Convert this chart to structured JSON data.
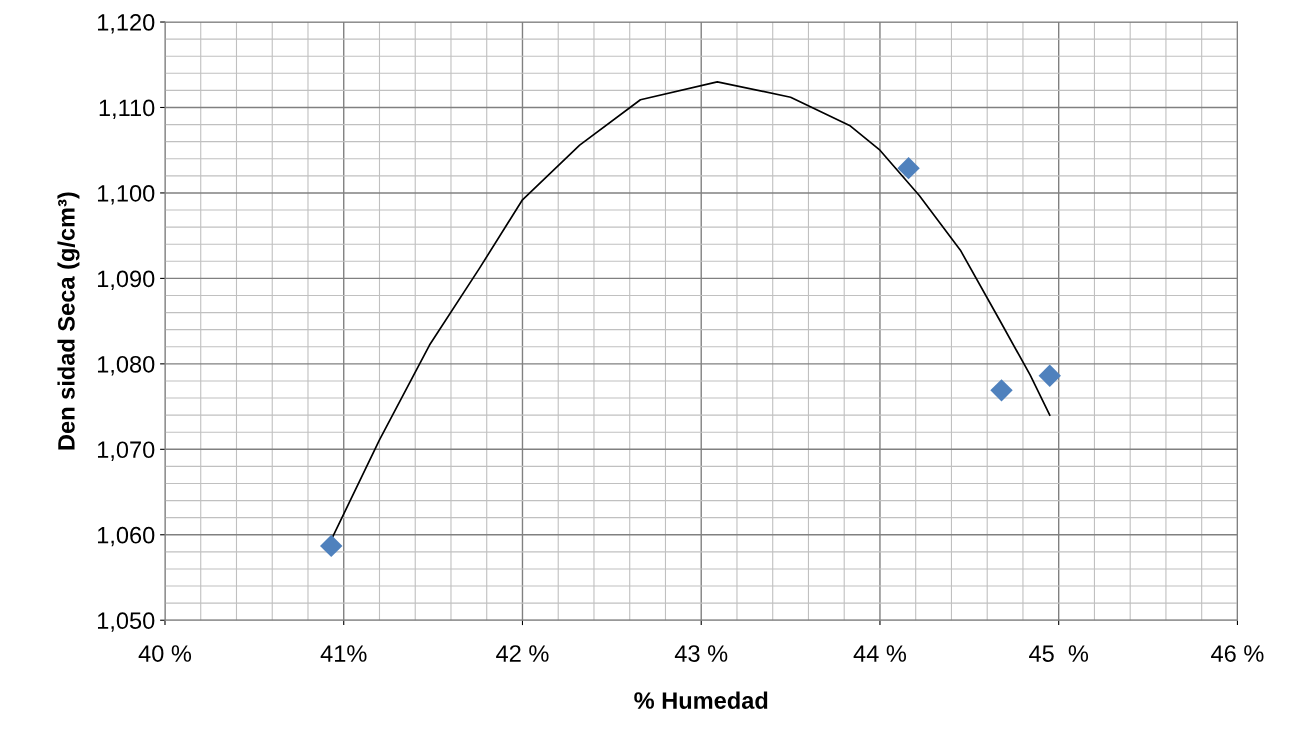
{
  "chart_data": {
    "type": "scatter",
    "xlabel": "% Humedad",
    "ylabel": "Den sidad Seca (g/cm³)",
    "xlim": [
      40,
      46
    ],
    "ylim": [
      1050,
      1120
    ],
    "xticks": [
      {
        "value": 40,
        "label": "40 %"
      },
      {
        "value": 41,
        "label": "41%"
      },
      {
        "value": 42,
        "label": "42 %"
      },
      {
        "value": 43,
        "label": "43 %"
      },
      {
        "value": 44,
        "label": "44 %"
      },
      {
        "value": 45,
        "label": "45  %"
      },
      {
        "value": 46,
        "label": "46 %"
      }
    ],
    "yticks": [
      {
        "value": 1050,
        "label": "1,050"
      },
      {
        "value": 1060,
        "label": "1,060"
      },
      {
        "value": 1070,
        "label": "1,070"
      },
      {
        "value": 1080,
        "label": "1,080"
      },
      {
        "value": 1090,
        "label": "1,090"
      },
      {
        "value": 1100,
        "label": "1,100"
      },
      {
        "value": 1110,
        "label": "1,110"
      },
      {
        "value": 1120,
        "label": "1,120"
      }
    ],
    "grid": true,
    "marker": "diamond",
    "series": [
      {
        "color": "#4f81bd",
        "x": [
          40.93,
          44.16,
          44.68,
          44.95
        ],
        "values": [
          1058.7,
          1102.9,
          1076.9,
          1078.6
        ]
      },
      {
        "type": "line",
        "color": "#000000",
        "marker": "none",
        "x": [
          40.93,
          41.2,
          41.48,
          41.76,
          42.0,
          42.32,
          42.66,
          43.09,
          43.5,
          43.83,
          44.0,
          44.22,
          44.45,
          44.67,
          44.84,
          44.95
        ],
        "values": [
          1059.4,
          1071.1,
          1082.2,
          1091.2,
          1099.2,
          1105.6,
          1110.9,
          1113.0,
          1111.2,
          1107.9,
          1105.0,
          1099.7,
          1093.3,
          1085.1,
          1078.7,
          1074.0
        ]
      }
    ]
  }
}
